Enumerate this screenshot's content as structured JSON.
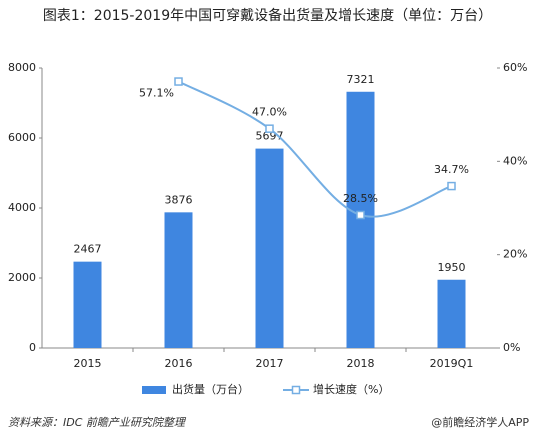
{
  "chart_data": {
    "type": "bar",
    "title": "图表1：2015-2019年中国可穿戴设备出货量及增长速度（单位：万台）",
    "source": "资料来源：IDC 前瞻产业研究院整理",
    "brand": "@前瞻经济学人APP",
    "categories": [
      "2015",
      "2016",
      "2017",
      "2018",
      "2019Q1"
    ],
    "series": [
      {
        "name": "出货量（万台）",
        "color": "#3f86e0",
        "type": "bar",
        "values": [
          2467,
          3876,
          5697,
          7321,
          1950
        ]
      },
      {
        "name": "增长速度（%）",
        "color": "#74aee3",
        "type": "line",
        "axis": "y2",
        "values": [
          null,
          57.1,
          47.0,
          28.5,
          34.7
        ],
        "value_labels": [
          null,
          "57.1%",
          "47.0%",
          "28.5%",
          "34.7%"
        ]
      }
    ],
    "ylim": [
      0,
      8000
    ],
    "yticks": [
      0,
      2000,
      4000,
      6000,
      8000
    ],
    "y2lim": [
      0,
      60
    ],
    "y2ticks": [
      {
        "value": 0,
        "label": "0%"
      },
      {
        "value": 20,
        "label": "20%"
      },
      {
        "value": 40,
        "label": "40%"
      },
      {
        "value": 60,
        "label": "60%"
      }
    ],
    "legend": "bottom"
  }
}
